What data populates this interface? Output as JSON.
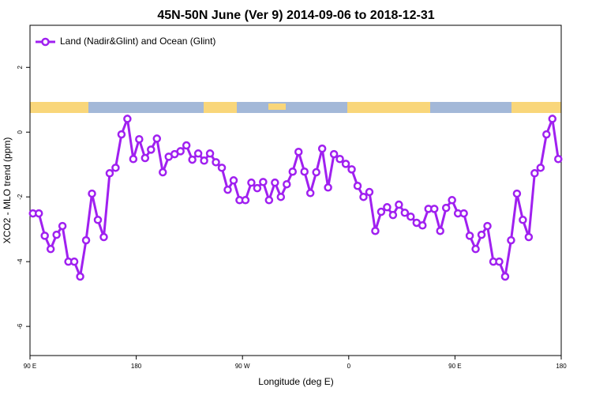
{
  "chart_data": {
    "type": "line",
    "title": "45N-50N June (Ver 9)   2014-09-06 to 2018-12-31",
    "xlabel": "Longitude (deg E)",
    "ylabel": "XCO2 - MLO trend (ppm)",
    "x": [
      92.5,
      97.5,
      102.5,
      107.5,
      112.5,
      117.5,
      122.5,
      127.5,
      132.5,
      137.5,
      142.5,
      147.5,
      152.5,
      157.5,
      162.5,
      167.5,
      172.5,
      177.5,
      182.5,
      187.5,
      192.5,
      197.5,
      202.5,
      207.5,
      212.5,
      217.5,
      222.5,
      227.5,
      232.5,
      237.5,
      242.5,
      247.5,
      252.5,
      257.5,
      262.5,
      267.5,
      272.5,
      277.5,
      282.5,
      287.5,
      292.5,
      297.5,
      302.5,
      307.5,
      312.5,
      317.5,
      322.5,
      327.5,
      332.5,
      337.5,
      342.5,
      347.5,
      352.5,
      357.5,
      362.5,
      367.5,
      372.5,
      377.5,
      382.5,
      387.5,
      392.5,
      397.5,
      402.5,
      407.5,
      412.5,
      417.5,
      422.5,
      427.5,
      432.5,
      437.5,
      442.5,
      447.5,
      452.5,
      457.5,
      462.5,
      467.5,
      472.5,
      477.5,
      482.5,
      487.5,
      492.5,
      497.5,
      502.5,
      507.5,
      512.5,
      517.5,
      522.5,
      527.5,
      532.5,
      537.5
    ],
    "series": [
      {
        "name": "Land (Nadir&Glint) and Ocean (Glint)",
        "color": "#a020f0",
        "values": [
          -2.51,
          -2.51,
          -3.2,
          -3.61,
          -3.17,
          -2.9,
          -4.0,
          -4.0,
          -4.46,
          -3.34,
          -1.9,
          -2.71,
          -3.24,
          -1.27,
          -1.1,
          -0.07,
          0.41,
          -0.83,
          -0.22,
          -0.8,
          -0.54,
          -0.2,
          -1.24,
          -0.76,
          -0.68,
          -0.59,
          -0.41,
          -0.85,
          -0.66,
          -0.88,
          -0.66,
          -0.93,
          -1.1,
          -1.78,
          -1.49,
          -2.1,
          -2.1,
          -1.56,
          -1.73,
          -1.54,
          -2.1,
          -1.56,
          -2.0,
          -1.61,
          -1.22,
          -0.61,
          -1.22,
          -1.88,
          -1.24,
          -0.51,
          -1.71,
          -0.68,
          -0.83,
          -0.98,
          -1.15,
          -1.66,
          -2.0,
          -1.85,
          -3.05,
          -2.46,
          -2.32,
          -2.56,
          -2.24,
          -2.49,
          -2.61,
          -2.8,
          -2.88,
          -2.37,
          -2.37,
          -3.05,
          -2.34,
          -2.1,
          -2.51,
          -2.51,
          -3.2,
          -3.61,
          -3.17,
          -2.9,
          -4.0,
          -4.0,
          -4.46,
          -3.34,
          -1.9,
          -2.71,
          -3.24,
          -1.27,
          -1.1,
          -0.07,
          0.41,
          -0.83
        ]
      }
    ],
    "xlim": [
      90,
      540
    ],
    "xticks": [
      {
        "value": 90,
        "label": "90 E"
      },
      180,
      {
        "value": 270,
        "label": "90 W"
      },
      {
        "value": 360,
        "label": "0"
      },
      {
        "value": 450,
        "label": "90 E"
      },
      {
        "value": 540,
        "label": "180"
      }
    ],
    "ylim": [
      -6.9,
      3.3
    ],
    "yticks": [
      -6,
      -4,
      -2,
      0,
      2
    ],
    "legend": "top-left"
  }
}
